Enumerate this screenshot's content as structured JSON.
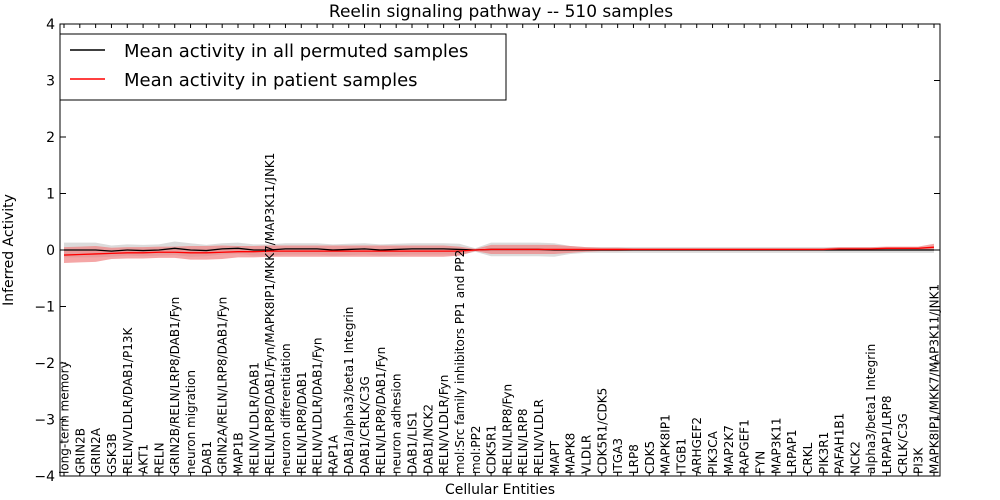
{
  "chart_data": {
    "type": "line",
    "title": "Reelin signaling pathway -- 510 samples",
    "xlabel": "Cellular Entities",
    "ylabel": "Inferred Activity",
    "ylim": [
      -4,
      4
    ],
    "yticks": [
      -4,
      -3,
      -2,
      -1,
      0,
      1,
      2,
      3,
      4
    ],
    "ytick_labels": [
      "−4",
      "−3",
      "−2",
      "−1",
      "0",
      "1",
      "2",
      "3",
      "4"
    ],
    "legend_position": "top-left",
    "categories": [
      "long-term memory",
      "GRIN2B",
      "GRIN2A",
      "GSK3B",
      "RELN/VLDLR/DAB1/P13K",
      "AKT1",
      "RELN",
      "GRIN2B/RELN/LRP8/DAB1/Fyn",
      "neuron migration",
      "DAB1",
      "GRIN2A/RELN/LRP8/DAB1/Fyn",
      "MAP1B",
      "RELN/VLDLR/DAB1",
      "RELN/LRP8/DAB1/Fyn/MAPK8IP1/MKK7/MAP3K11/JNK1",
      "neuron differentiation",
      "RELN/LRP8/DAB1",
      "RELN/VLDLR/DAB1/Fyn",
      "RAP1A",
      "DAB1/alpha3/beta1 Integrin",
      "DAB1/CRLK/C3G",
      "RELN/LRP8/DAB1/Fyn",
      "neuron adhesion",
      "DAB1/LIS1",
      "DAB1/NCK2",
      "RELN/VLDLR/Fyn",
      "mol:Src family inhibitors PP1 and PP2",
      "mol:PP2",
      "CDK5R1",
      "RELN/LRP8/Fyn",
      "RELN/LRP8",
      "RELN/VLDLR",
      "MAPT",
      "MAPK8",
      "VLDLR",
      "CDK5R1/CDK5",
      "ITGA3",
      "LRP8",
      "CDK5",
      "MAPK8IP1",
      "ITGB1",
      "ARHGEF2",
      "PIK3CA",
      "MAP2K7",
      "RAPGEF1",
      "FYN",
      "MAP3K11",
      "LRPAP1",
      "CRKL",
      "PIK3R1",
      "PAFAH1B1",
      "NCK2",
      "alpha3/beta1 Integrin",
      "LRPAP1/LRP8",
      "CRLK/C3G",
      "PI3K",
      "MAPK8IP1/MKK7/MAP3K11/JNK1"
    ],
    "series": [
      {
        "name": "Mean activity in all permuted samples",
        "color": "#000000",
        "values": [
          0.0,
          0.0,
          0.0,
          -0.02,
          0.0,
          -0.01,
          0.0,
          0.03,
          0.0,
          -0.01,
          0.02,
          0.03,
          0.0,
          0.0,
          0.02,
          0.02,
          0.02,
          0.0,
          0.01,
          0.02,
          0.0,
          0.01,
          0.02,
          0.02,
          0.02,
          0.01,
          0.0,
          0.01,
          0.01,
          0.01,
          0.01,
          0.0,
          0.0,
          0.0,
          0.0,
          0.0,
          0.0,
          0.0,
          0.0,
          0.0,
          0.0,
          0.0,
          0.0,
          0.0,
          0.0,
          0.0,
          0.0,
          0.0,
          0.0,
          0.0,
          0.0,
          0.0,
          0.0,
          0.0,
          0.0,
          0.0
        ],
        "band": [
          0.13,
          0.13,
          0.13,
          0.1,
          0.1,
          0.1,
          0.1,
          0.12,
          0.12,
          0.1,
          0.1,
          0.1,
          0.1,
          0.1,
          0.1,
          0.1,
          0.1,
          0.1,
          0.1,
          0.1,
          0.1,
          0.1,
          0.1,
          0.1,
          0.1,
          0.1,
          0.03,
          0.12,
          0.12,
          0.12,
          0.12,
          0.12,
          0.07,
          0.05,
          0.05,
          0.05,
          0.05,
          0.05,
          0.05,
          0.05,
          0.05,
          0.05,
          0.05,
          0.05,
          0.05,
          0.05,
          0.05,
          0.05,
          0.05,
          0.05,
          0.05,
          0.05,
          0.05,
          0.05,
          0.05,
          0.05
        ]
      },
      {
        "name": "Mean activity in patient samples",
        "color": "#ff0000",
        "fill": "#f08080",
        "values": [
          -0.09,
          -0.08,
          -0.07,
          -0.06,
          -0.05,
          -0.05,
          -0.04,
          -0.04,
          -0.05,
          -0.05,
          -0.04,
          -0.03,
          -0.03,
          -0.02,
          -0.02,
          -0.02,
          -0.02,
          -0.02,
          -0.02,
          -0.02,
          -0.02,
          -0.02,
          -0.02,
          -0.02,
          -0.02,
          -0.02,
          0.0,
          0.01,
          0.01,
          0.01,
          0.01,
          0.01,
          0.01,
          0.01,
          0.01,
          0.01,
          0.01,
          0.01,
          0.01,
          0.01,
          0.01,
          0.01,
          0.01,
          0.01,
          0.01,
          0.01,
          0.01,
          0.01,
          0.01,
          0.02,
          0.02,
          0.02,
          0.03,
          0.03,
          0.03,
          0.05
        ],
        "band": [
          0.14,
          0.14,
          0.14,
          0.1,
          0.1,
          0.1,
          0.1,
          0.1,
          0.12,
          0.12,
          0.12,
          0.1,
          0.1,
          0.1,
          0.1,
          0.1,
          0.1,
          0.1,
          0.1,
          0.1,
          0.1,
          0.1,
          0.1,
          0.1,
          0.1,
          0.08,
          0.02,
          0.08,
          0.08,
          0.08,
          0.08,
          0.08,
          0.06,
          0.04,
          0.03,
          0.03,
          0.02,
          0.02,
          0.02,
          0.02,
          0.02,
          0.02,
          0.02,
          0.02,
          0.02,
          0.02,
          0.02,
          0.02,
          0.02,
          0.03,
          0.03,
          0.03,
          0.03,
          0.03,
          0.03,
          0.06
        ]
      }
    ]
  }
}
